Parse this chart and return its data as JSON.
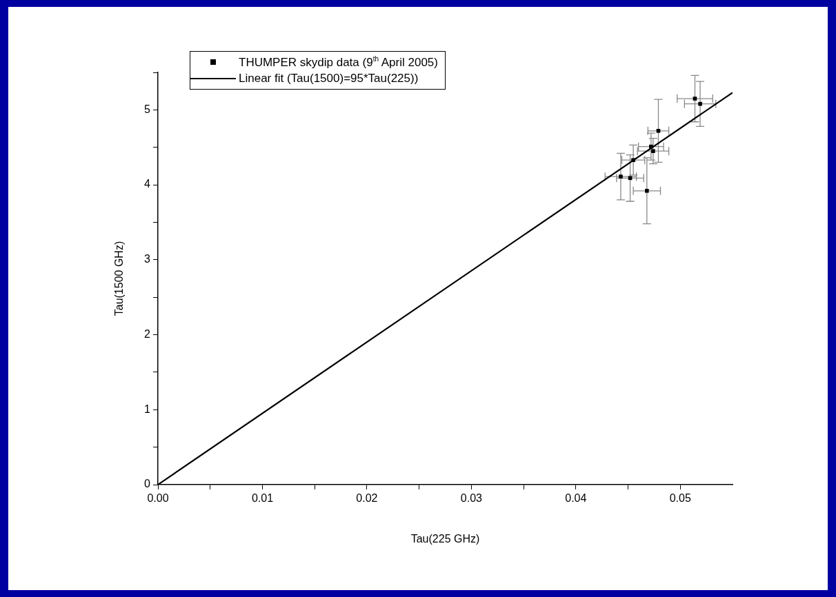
{
  "chart_data": {
    "type": "scatter",
    "xlabel": "Tau(225 GHz)",
    "ylabel": "Tau(1500 GHz)",
    "xlim": [
      0,
      0.055
    ],
    "ylim": [
      0,
      5.5
    ],
    "xticks": [
      {
        "value": 0,
        "label": "0.00"
      },
      {
        "value": 0.005,
        "label": null
      },
      {
        "value": 0.01,
        "label": "0.01"
      },
      {
        "value": 0.015,
        "label": null
      },
      {
        "value": 0.02,
        "label": "0.02"
      },
      {
        "value": 0.025,
        "label": null
      },
      {
        "value": 0.03,
        "label": "0.03"
      },
      {
        "value": 0.035,
        "label": null
      },
      {
        "value": 0.04,
        "label": "0.04"
      },
      {
        "value": 0.045,
        "label": null
      },
      {
        "value": 0.05,
        "label": "0.05"
      }
    ],
    "yticks": [
      0,
      {
        "value": 0.5,
        "label": null
      },
      1,
      {
        "value": 1.5,
        "label": null
      },
      2,
      {
        "value": 2.5,
        "label": null
      },
      3,
      {
        "value": 3.5,
        "label": null
      },
      4,
      {
        "value": 4.5,
        "label": null
      },
      5,
      {
        "value": 5.5,
        "label": null
      }
    ],
    "grid": false,
    "legend": "top left",
    "series": [
      {
        "name": "THUMPER skydip data (9$^{th}$ April 2005)",
        "marker": "square",
        "color": "#000000",
        "x": [
          0.0514,
          0.0519,
          0.0479,
          0.0472,
          0.0474,
          0.0455,
          0.0443,
          0.0452,
          0.0468
        ],
        "values": [
          5.15,
          5.08,
          4.72,
          4.51,
          4.45,
          4.33,
          4.11,
          4.09,
          3.92
        ],
        "errors": [
          0.31,
          0.3,
          0.42,
          0.18,
          0.17,
          0.2,
          0.31,
          0.31,
          0.44
        ],
        "xerrors": [
          0.0017,
          0.0015,
          0.001,
          0.0012,
          0.0015,
          0.0011,
          0.0015,
          0.0013,
          0.0013
        ]
      },
      {
        "name": "Linear fit (Tau(1500)=95*Tau(225))",
        "type": "line",
        "marker": "none",
        "color": "#000000",
        "line_style": "solid",
        "x": [
          0,
          0.055
        ],
        "values": [
          0,
          5.23
        ]
      }
    ]
  }
}
